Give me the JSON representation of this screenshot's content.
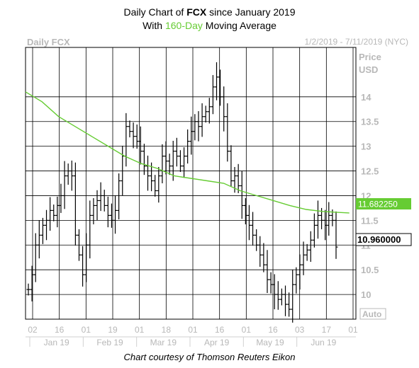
{
  "title": {
    "line1_prefix": "Daily Chart of ",
    "line1_ticker": "FCX",
    "line1_suffix": " since January 2019",
    "line2_prefix": "With ",
    "line2_highlight": "160-Day",
    "line2_suffix": " Moving Average"
  },
  "header": {
    "left": "Daily FCX",
    "right": "1/2/2019 - 7/11/2019 (NYC)"
  },
  "price_axis_label": [
    "Price",
    "USD"
  ],
  "auto_label": "Auto",
  "credit": "Chart courtesy of Thomson Reuters Eikon",
  "colors": {
    "grid": "#000000",
    "bars": "#000000",
    "moving_average": "#66cc33",
    "ma_badge": "#66cc33",
    "last_badge": "#ffffff",
    "muted_text": "#b8b8b8"
  },
  "chart_data": {
    "type": "ohlc",
    "ylim": [
      9.5,
      15
    ],
    "y_ticks": [
      10,
      10.5,
      11,
      11.5,
      12,
      12.5,
      13,
      13.5,
      14
    ],
    "y_tick_labels": [
      "10",
      "10.5",
      "11",
      "11.5",
      "12",
      "12.5",
      "13",
      "13.5",
      "14"
    ],
    "x_day_labels": [
      "02",
      "16",
      "01",
      "19",
      "01",
      "18",
      "01",
      "16",
      "01",
      "16",
      "03",
      "17",
      "01"
    ],
    "x_month_labels": [
      "Jan 19",
      "Feb 19",
      "Mar 19",
      "Apr 19",
      "May 19",
      "Jun 19"
    ],
    "ma_badge_value": "11.682250",
    "last_value_badge": "10.960000",
    "price_series": [
      10.1,
      10.4,
      11.0,
      11.2,
      11.4,
      11.5,
      11.7,
      11.6,
      11.8,
      12.0,
      12.4,
      12.5,
      12.4,
      11.2,
      10.8,
      10.4,
      11.0,
      11.6,
      11.8,
      11.9,
      12.0,
      11.8,
      11.6,
      11.5,
      11.7,
      12.3,
      12.8,
      13.4,
      13.3,
      13.2,
      13.1,
      12.9,
      12.6,
      12.4,
      12.3,
      12.1,
      12.4,
      12.8,
      12.7,
      12.6,
      12.9,
      12.8,
      12.6,
      12.8,
      13.1,
      13.3,
      13.5,
      13.4,
      13.6,
      13.7,
      13.8,
      14.2,
      14.4,
      14.0,
      13.6,
      12.9,
      12.3,
      12.4,
      12.2,
      11.8,
      11.6,
      11.4,
      11.2,
      11.0,
      10.8,
      10.6,
      10.3,
      10.2,
      10.0,
      9.9,
      10.0,
      9.8,
      9.7,
      10.2,
      10.4,
      10.6,
      10.8,
      10.9,
      11.1,
      11.4,
      11.6,
      11.5,
      11.4,
      11.6,
      11.5,
      10.96
    ],
    "moving_average_160day": {
      "x_fraction": [
        0,
        0.05,
        0.1,
        0.15,
        0.2,
        0.25,
        0.3,
        0.35,
        0.4,
        0.45,
        0.5,
        0.55,
        0.6,
        0.65,
        0.7,
        0.75,
        0.8,
        0.85,
        0.9,
        0.95,
        0.98
      ],
      "values": [
        14.1,
        13.9,
        13.6,
        13.4,
        13.2,
        13.0,
        12.8,
        12.65,
        12.55,
        12.4,
        12.35,
        12.3,
        12.25,
        12.1,
        12.0,
        11.9,
        11.8,
        11.72,
        11.68,
        11.66,
        11.65
      ]
    }
  }
}
